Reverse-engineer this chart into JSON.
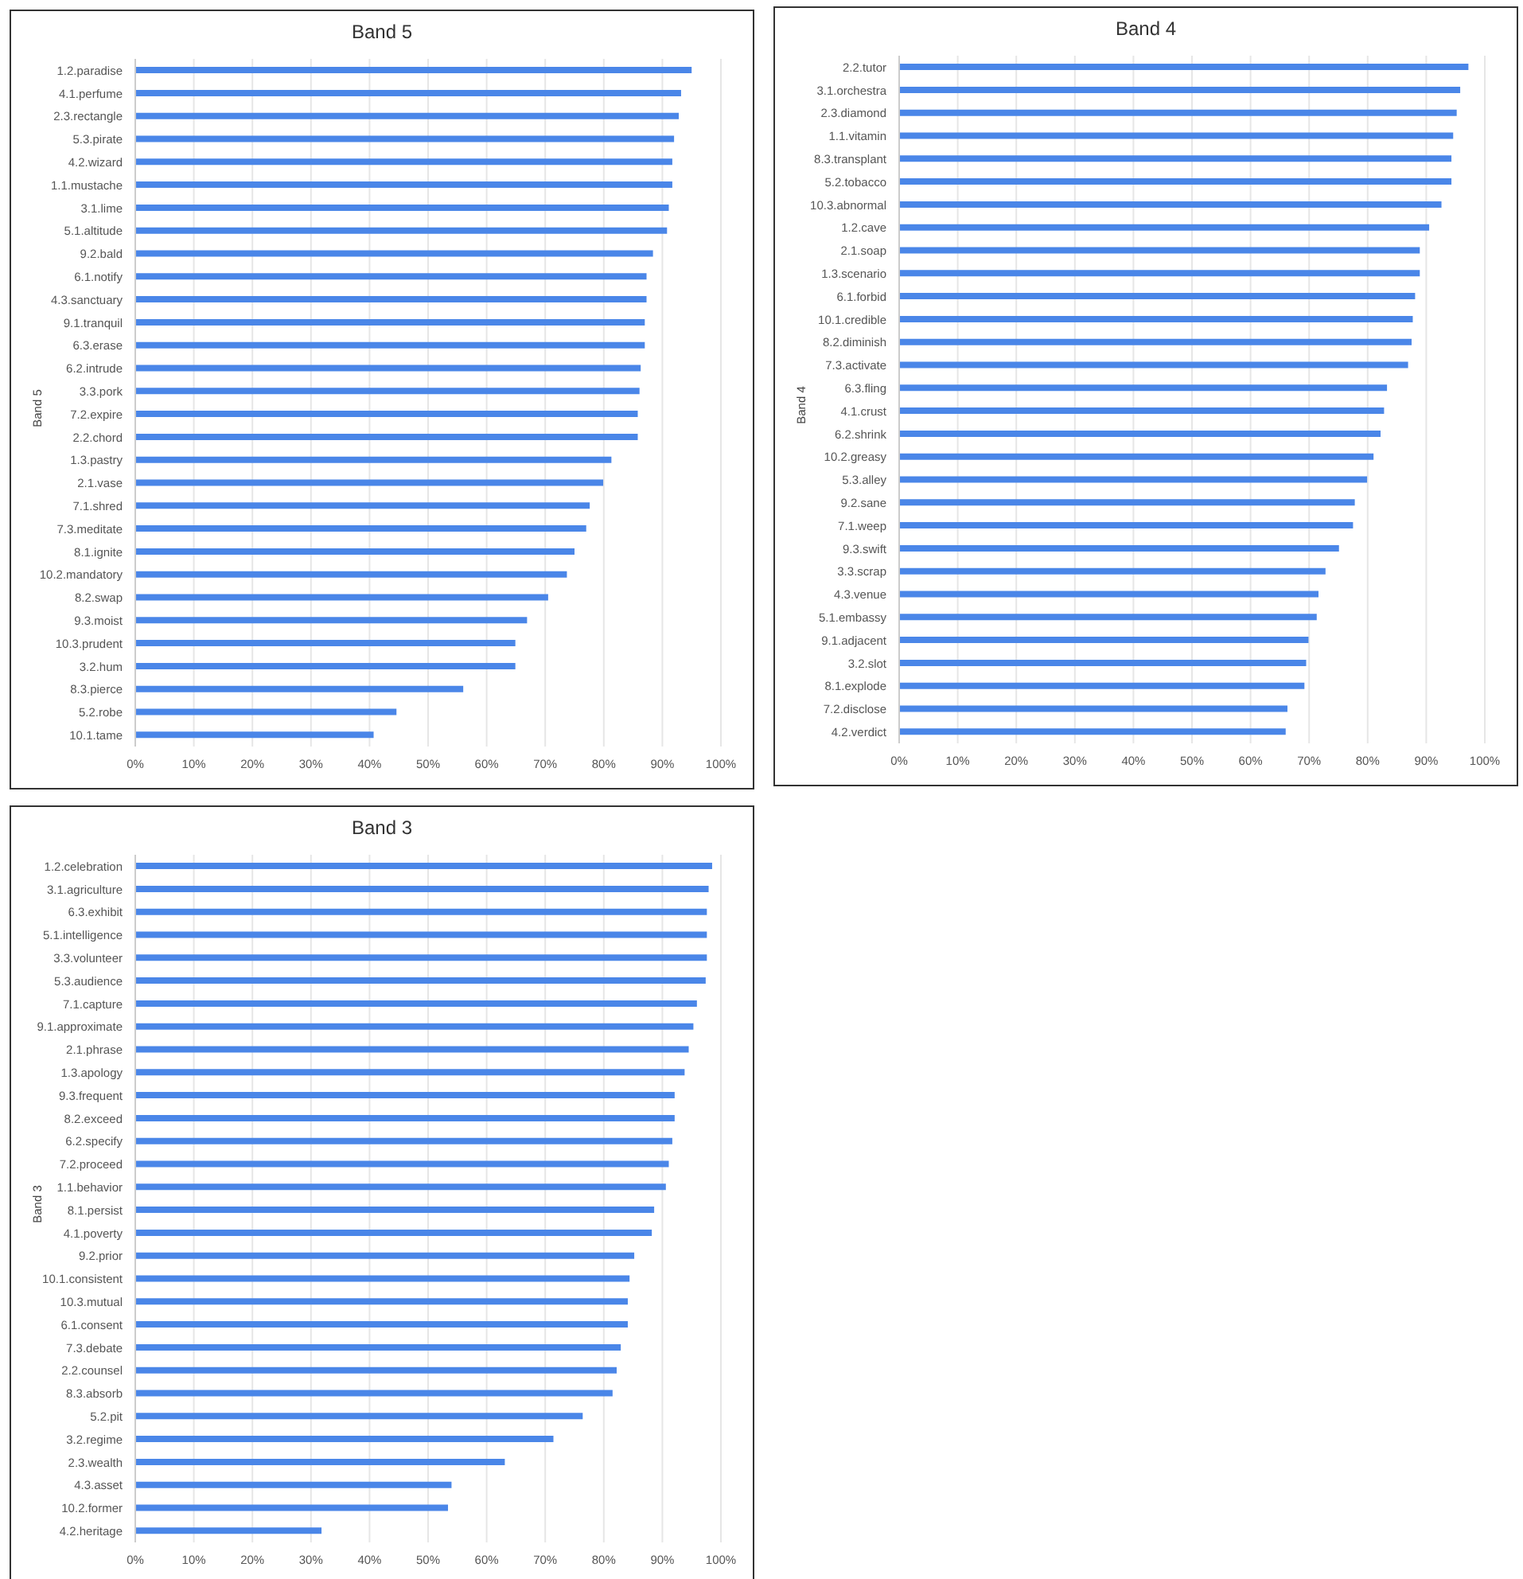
{
  "chart_data": [
    {
      "type": "bar",
      "orientation": "horizontal",
      "title": "Band 5",
      "ylabel": "Band 5",
      "color": "#4a86e8",
      "grid": "x",
      "xlim": [
        0,
        100
      ],
      "xticks": [
        {
          "value": 0,
          "label": "0%"
        },
        {
          "value": 10,
          "label": "10%"
        },
        {
          "value": 20,
          "label": "20%"
        },
        {
          "value": 30,
          "label": "30%"
        },
        {
          "value": 40,
          "label": "40%"
        },
        {
          "value": 50,
          "label": "50%"
        },
        {
          "value": 60,
          "label": "60%"
        },
        {
          "value": 70,
          "label": "70%"
        },
        {
          "value": 80,
          "label": "80%"
        },
        {
          "value": 90,
          "label": "90%"
        },
        {
          "value": 100,
          "label": "100%"
        }
      ],
      "categories": [
        "1.2.paradise",
        "4.1.perfume",
        "2.3.rectangle",
        "5.3.pirate",
        "4.2.wizard",
        "1.1.mustache",
        "3.1.lime",
        "5.1.altitude",
        "9.2.bald",
        "6.1.notify",
        "4.3.sanctuary",
        "9.1.tranquil",
        "6.3.erase",
        "6.2.intrude",
        "3.3.pork",
        "7.2.expire",
        "2.2.chord",
        "1.3.pastry",
        "2.1.vase",
        "7.1.shred",
        "7.3.meditate",
        "8.1.ignite",
        "10.2.mandatory",
        "8.2.swap",
        "9.3.moist",
        "10.3.prudent",
        "3.2.hum",
        "8.3.pierce",
        "5.2.robe",
        "10.1.tame"
      ],
      "values": [
        95.0,
        93.2,
        92.8,
        92.0,
        91.7,
        91.7,
        91.1,
        90.8,
        88.4,
        87.3,
        87.3,
        87.0,
        87.0,
        86.3,
        86.1,
        85.8,
        85.8,
        81.3,
        79.9,
        77.6,
        77.0,
        75.0,
        73.7,
        70.5,
        66.9,
        64.9,
        64.9,
        56.0,
        44.6,
        40.7
      ]
    },
    {
      "type": "bar",
      "orientation": "horizontal",
      "title": "Band 4",
      "ylabel": "Band 4",
      "color": "#4a86e8",
      "grid": "x",
      "xlim": [
        0,
        100
      ],
      "xticks": [
        {
          "value": 0,
          "label": "0%"
        },
        {
          "value": 10,
          "label": "10%"
        },
        {
          "value": 20,
          "label": "20%"
        },
        {
          "value": 30,
          "label": "30%"
        },
        {
          "value": 40,
          "label": "40%"
        },
        {
          "value": 50,
          "label": "50%"
        },
        {
          "value": 60,
          "label": "60%"
        },
        {
          "value": 70,
          "label": "70%"
        },
        {
          "value": 80,
          "label": "80%"
        },
        {
          "value": 90,
          "label": "90%"
        },
        {
          "value": 100,
          "label": "100%"
        }
      ],
      "categories": [
        "2.2.tutor",
        "3.1.orchestra",
        "2.3.diamond",
        "1.1.vitamin",
        "8.3.transplant",
        "5.2.tobacco",
        "10.3.abnormal",
        "1.2.cave",
        "2.1.soap",
        "1.3.scenario",
        "6.1.forbid",
        "10.1.credible",
        "8.2.diminish",
        "7.3.activate",
        "6.3.fling",
        "4.1.crust",
        "6.2.shrink",
        "10.2.greasy",
        "5.3.alley",
        "9.2.sane",
        "7.1.weep",
        "9.3.swift",
        "3.3.scrap",
        "4.3.venue",
        "5.1.embassy",
        "9.1.adjacent",
        "3.2.slot",
        "8.1.explode",
        "7.2.disclose",
        "4.2.verdict"
      ],
      "values": [
        97.2,
        95.8,
        95.2,
        94.6,
        94.3,
        94.3,
        92.6,
        90.5,
        88.9,
        88.9,
        88.1,
        87.7,
        87.5,
        86.9,
        83.3,
        82.8,
        82.2,
        81.0,
        79.9,
        77.8,
        77.5,
        75.1,
        72.8,
        71.6,
        71.3,
        69.9,
        69.5,
        69.2,
        66.3,
        66.0
      ]
    },
    {
      "type": "bar",
      "orientation": "horizontal",
      "title": "Band 3",
      "ylabel": "Band 3",
      "color": "#4a86e8",
      "grid": "x",
      "xlim": [
        0,
        100
      ],
      "xticks": [
        {
          "value": 0,
          "label": "0%"
        },
        {
          "value": 10,
          "label": "10%"
        },
        {
          "value": 20,
          "label": "20%"
        },
        {
          "value": 30,
          "label": "30%"
        },
        {
          "value": 40,
          "label": "40%"
        },
        {
          "value": 50,
          "label": "50%"
        },
        {
          "value": 60,
          "label": "60%"
        },
        {
          "value": 70,
          "label": "70%"
        },
        {
          "value": 80,
          "label": "80%"
        },
        {
          "value": 90,
          "label": "90%"
        },
        {
          "value": 100,
          "label": "100%"
        }
      ],
      "categories": [
        "1.2.celebration",
        "3.1.agriculture",
        "6.3.exhibit",
        "5.1.intelligence",
        "3.3.volunteer",
        "5.3.audience",
        "7.1.capture",
        "9.1.approximate",
        "2.1.phrase",
        "1.3.apology",
        "9.3.frequent",
        "8.2.exceed",
        "6.2.specify",
        "7.2.proceed",
        "1.1.behavior",
        "8.1.persist",
        "4.1.poverty",
        "9.2.prior",
        "10.1.consistent",
        "10.3.mutual",
        "6.1.consent",
        "7.3.debate",
        "2.2.counsel",
        "8.3.absorb",
        "5.2.pit",
        "3.2.regime",
        "2.3.wealth",
        "4.3.asset",
        "10.2.former",
        "4.2.heritage"
      ],
      "values": [
        98.5,
        97.9,
        97.6,
        97.6,
        97.6,
        97.4,
        95.9,
        95.3,
        94.5,
        93.8,
        92.1,
        92.1,
        91.7,
        91.1,
        90.6,
        88.6,
        88.2,
        85.2,
        84.4,
        84.1,
        84.1,
        82.9,
        82.2,
        81.5,
        76.4,
        71.4,
        63.1,
        54.0,
        53.4,
        31.8
      ]
    }
  ]
}
